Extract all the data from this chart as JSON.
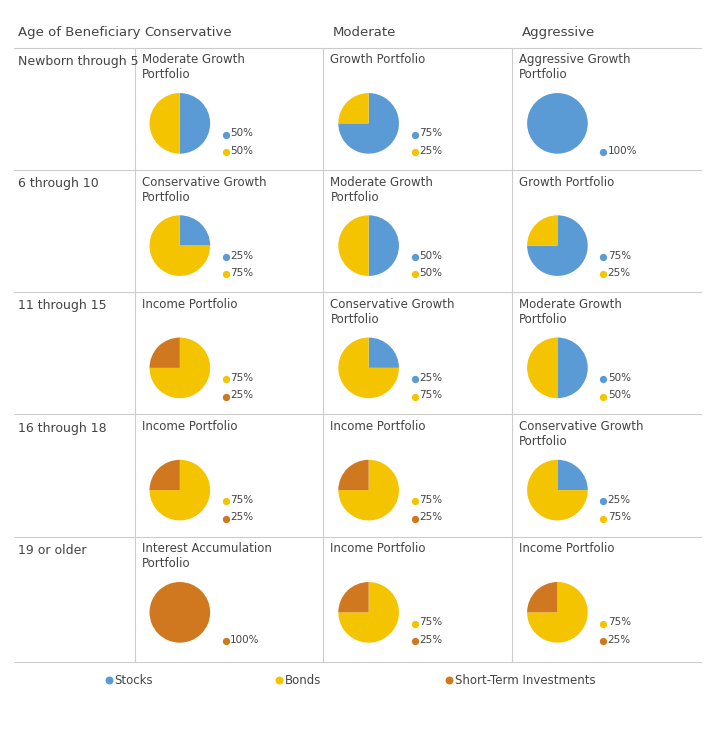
{
  "col_headers": [
    "Age of Beneficiary",
    "Conservative",
    "Moderate",
    "Aggressive"
  ],
  "row_labels": [
    "Newborn through 5",
    "6 through 10",
    "11 through 15",
    "16 through 18",
    "19 or older"
  ],
  "colors": {
    "stocks": "#5B9BD5",
    "bonds": "#F5C400",
    "short_term": "#D07820"
  },
  "legend_labels": [
    "Stocks",
    "Bonds",
    "Short-Term Investments"
  ],
  "charts": [
    [
      {
        "title": "Moderate Growth\nPortfolio",
        "slices": [
          50,
          50
        ],
        "colors": [
          "stocks",
          "bonds"
        ],
        "labels": [
          "50%",
          "50%"
        ],
        "startangle": 90
      },
      {
        "title": "Growth Portfolio",
        "slices": [
          75,
          25
        ],
        "colors": [
          "stocks",
          "bonds"
        ],
        "labels": [
          "75%",
          "25%"
        ],
        "startangle": 90
      },
      {
        "title": "Aggressive Growth\nPortfolio",
        "slices": [
          100
        ],
        "colors": [
          "stocks"
        ],
        "labels": [
          "100%"
        ],
        "startangle": 90
      }
    ],
    [
      {
        "title": "Conservative Growth\nPortfolio",
        "slices": [
          25,
          75
        ],
        "colors": [
          "stocks",
          "bonds"
        ],
        "labels": [
          "25%",
          "75%"
        ],
        "startangle": 90
      },
      {
        "title": "Moderate Growth\nPortfolio",
        "slices": [
          50,
          50
        ],
        "colors": [
          "stocks",
          "bonds"
        ],
        "labels": [
          "50%",
          "50%"
        ],
        "startangle": 90
      },
      {
        "title": "Growth Portfolio",
        "slices": [
          75,
          25
        ],
        "colors": [
          "stocks",
          "bonds"
        ],
        "labels": [
          "75%",
          "25%"
        ],
        "startangle": 90
      }
    ],
    [
      {
        "title": "Income Portfolio",
        "slices": [
          75,
          25
        ],
        "colors": [
          "bonds",
          "short_term"
        ],
        "labels": [
          "75%",
          "25%"
        ],
        "startangle": 90
      },
      {
        "title": "Conservative Growth\nPortfolio",
        "slices": [
          25,
          75
        ],
        "colors": [
          "stocks",
          "bonds"
        ],
        "labels": [
          "25%",
          "75%"
        ],
        "startangle": 90
      },
      {
        "title": "Moderate Growth\nPortfolio",
        "slices": [
          50,
          50
        ],
        "colors": [
          "stocks",
          "bonds"
        ],
        "labels": [
          "50%",
          "50%"
        ],
        "startangle": 90
      }
    ],
    [
      {
        "title": "Income Portfolio",
        "slices": [
          75,
          25
        ],
        "colors": [
          "bonds",
          "short_term"
        ],
        "labels": [
          "75%",
          "25%"
        ],
        "startangle": 90
      },
      {
        "title": "Income Portfolio",
        "slices": [
          75,
          25
        ],
        "colors": [
          "bonds",
          "short_term"
        ],
        "labels": [
          "75%",
          "25%"
        ],
        "startangle": 90
      },
      {
        "title": "Conservative Growth\nPortfolio",
        "slices": [
          25,
          75
        ],
        "colors": [
          "stocks",
          "bonds"
        ],
        "labels": [
          "25%",
          "75%"
        ],
        "startangle": 90
      }
    ],
    [
      {
        "title": "Interest Accumulation\nPortfolio",
        "slices": [
          100
        ],
        "colors": [
          "short_term"
        ],
        "labels": [
          "100%"
        ],
        "startangle": 90
      },
      {
        "title": "Income Portfolio",
        "slices": [
          75,
          25
        ],
        "colors": [
          "bonds",
          "short_term"
        ],
        "labels": [
          "75%",
          "25%"
        ],
        "startangle": 90
      },
      {
        "title": "Income Portfolio",
        "slices": [
          75,
          25
        ],
        "colors": [
          "bonds",
          "short_term"
        ],
        "labels": [
          "75%",
          "25%"
        ],
        "startangle": 90
      }
    ]
  ],
  "background_color": "#ffffff",
  "text_color": "#444444",
  "separator_color": "#cccccc",
  "header_fontsize": 9.5,
  "row_label_fontsize": 9,
  "chart_title_fontsize": 8.5,
  "pie_label_fontsize": 7.5,
  "legend_fontsize": 8.5
}
